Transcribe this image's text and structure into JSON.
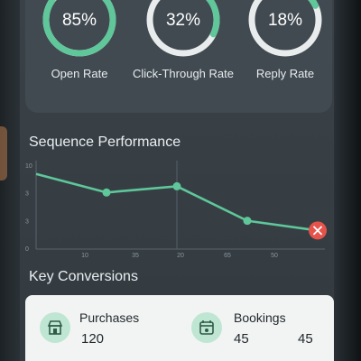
{
  "stats": [
    {
      "value": "85%",
      "label": "Open Rate",
      "progress": 0.85
    },
    {
      "value": "32%",
      "label": "Click-Through Rate",
      "progress": 0.32
    },
    {
      "value": "18%",
      "label": "Reply Rate",
      "progress": 0.18
    }
  ],
  "colors": {
    "accent": "#5fc79a",
    "ring_track": "#e8ecec",
    "alert": "#e5534b"
  },
  "sequence": {
    "title": "Sequence Performance"
  },
  "chart_data": {
    "type": "line",
    "title": "Sequence Performance",
    "x_ticks": [
      "10",
      "35",
      "20",
      "65",
      "50"
    ],
    "y_ticks": [
      "10",
      "3",
      "3",
      "0"
    ],
    "points": [
      {
        "step": 0,
        "value": 8.5
      },
      {
        "step": 1,
        "value": 6.4
      },
      {
        "step": 2,
        "value": 7.1
      },
      {
        "step": 3,
        "value": 3.2
      },
      {
        "step": 4,
        "value": 2.1
      }
    ],
    "ylim": [
      0,
      10
    ],
    "alert_marker": "close-icon"
  },
  "conversions": {
    "title": "Key Conversions",
    "items": [
      {
        "label": "Purchases",
        "value": "120",
        "icon": "storefront-icon"
      },
      {
        "label": "Bookings",
        "value": "45",
        "extra": "45",
        "icon": "calendar-booking-icon"
      }
    ]
  }
}
